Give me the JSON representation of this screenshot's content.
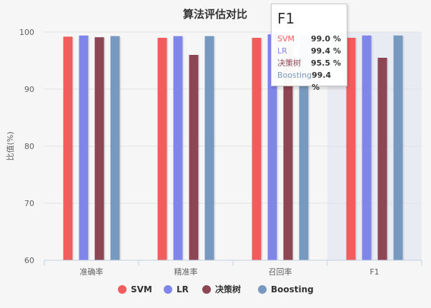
{
  "chart_data": {
    "type": "bar",
    "title": "算法评估对比",
    "ylabel": "比值(%)",
    "xlabel": "",
    "ylim": [
      60,
      100
    ],
    "yticks": [
      60,
      70,
      80,
      90,
      100
    ],
    "categories": [
      "准确率",
      "精准率",
      "召回率",
      "F1"
    ],
    "highlighted_category": "F1",
    "legend_position": "bottom-center",
    "grid": true,
    "series": [
      {
        "name": "SVM",
        "color": "#f15c5c",
        "values": [
          99.2,
          99.0,
          99.0,
          99.0
        ]
      },
      {
        "name": "LR",
        "color": "#8085e9",
        "values": [
          99.4,
          99.3,
          99.6,
          99.4
        ]
      },
      {
        "name": "决策树",
        "color": "#8d4653",
        "values": [
          99.1,
          96.0,
          97.5,
          95.5
        ]
      },
      {
        "name": "Boosting",
        "color": "#7798bf",
        "values": [
          99.3,
          99.3,
          99.5,
          99.4
        ]
      }
    ],
    "tooltip": {
      "title": "F1",
      "rows": [
        {
          "name": "SVM",
          "value": "99.0 %"
        },
        {
          "name": "LR",
          "value": "99.4 %"
        },
        {
          "name": "决策树",
          "value": "95.5 %"
        },
        {
          "name": "Boosting",
          "value": "99.4 %"
        }
      ]
    }
  }
}
